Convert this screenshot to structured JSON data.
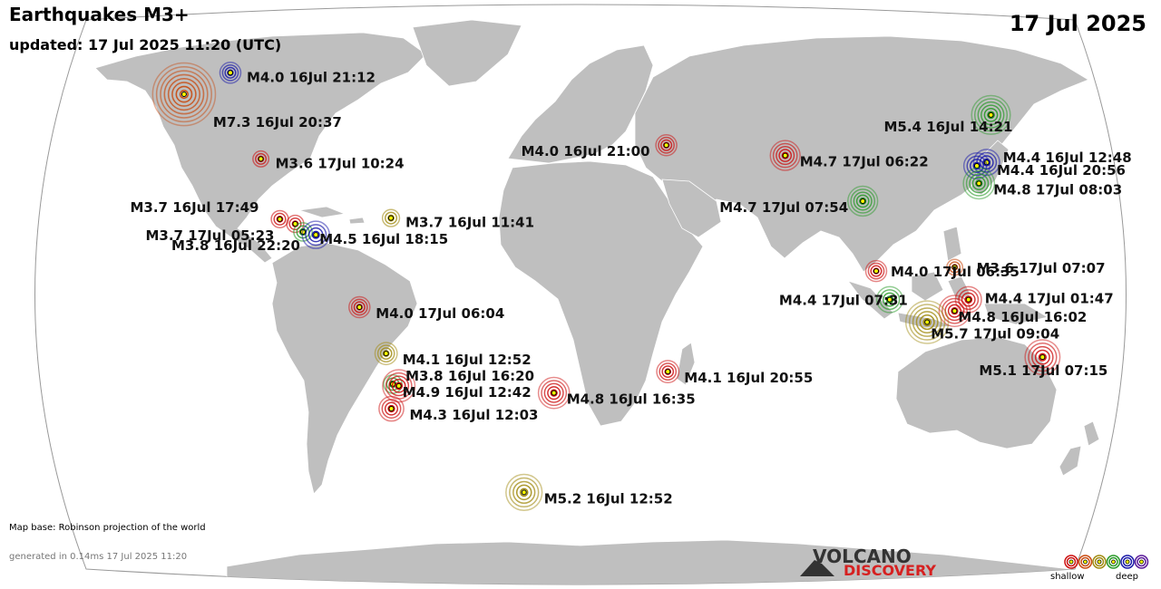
{
  "header": {
    "title": "Earthquakes M3+",
    "updated": "updated: 17 Jul 2025 11:20 (UTC)",
    "date": "17 Jul 2025"
  },
  "footer": {
    "map_base": "Map base: Robinson projection of the world",
    "generated": "generated in 0.14ms 17 Jul 2025 11:20",
    "logo_top": "VOLCANO",
    "logo_bottom": "DISCOVERY",
    "legend_shallow": "shallow",
    "legend_deep": "deep"
  },
  "colors": {
    "ocean": "#ffffff",
    "land": "#bfbfbf",
    "border": "#ffffff",
    "depth": [
      "#cc1010",
      "#c84a10",
      "#a08a10",
      "#2a9a2a",
      "#1a1aa8",
      "#5a1a9a"
    ]
  },
  "quakes": [
    {
      "mag": 4.0,
      "time": "16Jul 21:12",
      "lon": -149.0,
      "lat": 61.5,
      "depth": 4,
      "label": "M4.0 16Jul 21:12"
    },
    {
      "mag": 7.3,
      "time": "16Jul 20:37",
      "lon": -160.5,
      "lat": 54.8,
      "depth": 1,
      "label": "M7.3 16Jul 20:37"
    },
    {
      "mag": 3.6,
      "time": "17Jul 10:24",
      "lon": -118.0,
      "lat": 35.5,
      "depth": 0,
      "label": "M3.6 17Jul 10:24"
    },
    {
      "mag": 3.7,
      "time": "16Jul 17:49",
      "lon": -106.0,
      "lat": 18.5,
      "depth": 0,
      "label": "M3.7 16Jul 17:49"
    },
    {
      "mag": 3.7,
      "time": "17Jul 05:23",
      "lon": -100.5,
      "lat": 17.2,
      "depth": 0,
      "label": "M3.7 17Jul 05:23"
    },
    {
      "mag": 3.8,
      "time": "16Jul 22:20",
      "lon": -97.5,
      "lat": 15.0,
      "depth": 3,
      "label": "M3.8 16Jul 22:20"
    },
    {
      "mag": 4.5,
      "time": "16Jul 18:15",
      "lon": -93.0,
      "lat": 14.2,
      "depth": 4,
      "label": "M4.5 16Jul 18:15"
    },
    {
      "mag": 3.7,
      "time": "16Jul 11:41",
      "lon": -68.0,
      "lat": 18.8,
      "depth": 2,
      "label": "M3.7 16Jul 11:41"
    },
    {
      "mag": 4.0,
      "time": "17Jul 06:04",
      "lon": -77.5,
      "lat": -5.0,
      "depth": 0,
      "label": "M4.0 17Jul 06:04"
    },
    {
      "mag": 4.1,
      "time": "16Jul 12:52",
      "lon": -69.5,
      "lat": -17.5,
      "depth": 2,
      "label": "M4.1 16Jul 12:52"
    },
    {
      "mag": 3.8,
      "time": "16Jul 16:20",
      "lon": -68.5,
      "lat": -26.0,
      "depth": 3,
      "label": "M3.8 16Jul 16:20"
    },
    {
      "mag": 4.9,
      "time": "16Jul 12:42",
      "lon": -66.5,
      "lat": -26.5,
      "depth": 0,
      "label": "M4.9 16Jul 12:42"
    },
    {
      "mag": 4.3,
      "time": "16Jul 12:03",
      "lon": -70.5,
      "lat": -33.0,
      "depth": 0,
      "label": "M4.3 16Jul 12:03"
    },
    {
      "mag": 4.8,
      "time": "16Jul 16:35",
      "lon": -12.5,
      "lat": -28.5,
      "depth": 0,
      "label": "M4.8 16Jul 16:35"
    },
    {
      "mag": 5.2,
      "time": "16Jul 12:52",
      "lon": -26.5,
      "lat": -58.0,
      "depth": 2,
      "label": "M5.2 16Jul 12:52"
    },
    {
      "mag": 4.1,
      "time": "16Jul 20:55",
      "lon": 27.0,
      "lat": -22.5,
      "depth": 0,
      "label": "M4.1 16Jul 20:55"
    },
    {
      "mag": 4.0,
      "time": "16Jul 21:00",
      "lon": 28.0,
      "lat": 39.5,
      "depth": 0,
      "label": "M4.0 16Jul 21:00"
    },
    {
      "mag": 4.7,
      "time": "17Jul 06:22",
      "lon": 70.5,
      "lat": 36.5,
      "depth": 0,
      "label": "M4.7 17Jul 06:22"
    },
    {
      "mag": 4.7,
      "time": "17Jul 07:54",
      "lon": 94.5,
      "lat": 23.5,
      "depth": 3,
      "label": "M4.7 17Jul 07:54"
    },
    {
      "mag": 5.4,
      "time": "16Jul 14:21",
      "lon": 153.0,
      "lat": 48.5,
      "depth": 3,
      "label": "M5.4 16Jul 14:21"
    },
    {
      "mag": 4.4,
      "time": "16Jul 12:48",
      "lon": 142.0,
      "lat": 34.5,
      "depth": 4,
      "label": "M4.4 16Jul 12:48"
    },
    {
      "mag": 4.4,
      "time": "16Jul 20:56",
      "lon": 138.0,
      "lat": 33.5,
      "depth": 4,
      "label": "M4.4 16Jul 20:56"
    },
    {
      "mag": 4.8,
      "time": "17Jul 08:03",
      "lon": 136.5,
      "lat": 28.5,
      "depth": 3,
      "label": "M4.8 17Jul 08:03"
    },
    {
      "mag": 4.0,
      "time": "17Jul 06:35",
      "lon": 96.5,
      "lat": 4.5,
      "depth": 0,
      "label": "M4.0 17Jul 06:35"
    },
    {
      "mag": 3.6,
      "time": "17Jul 07:07",
      "lon": 123.0,
      "lat": 5.5,
      "depth": 1,
      "label": "M3.6 17Jul 07:07"
    },
    {
      "mag": 4.4,
      "time": "17Jul 07:31",
      "lon": 101.0,
      "lat": -3.0,
      "depth": 3,
      "label": "M4.4 17Jul 07:31"
    },
    {
      "mag": 4.4,
      "time": "17Jul 01:47",
      "lon": 127.5,
      "lat": -3.0,
      "depth": 0,
      "label": "M4.4 17Jul 01:47"
    },
    {
      "mag": 4.8,
      "time": "16Jul 16:02",
      "lon": 123.0,
      "lat": -6.0,
      "depth": 0,
      "label": "M4.8 16Jul 16:02"
    },
    {
      "mag": 5.7,
      "time": "17Jul 09:04",
      "lon": 114.0,
      "lat": -9.0,
      "depth": 2,
      "label": "M5.7 17Jul 09:04"
    },
    {
      "mag": 5.1,
      "time": "17Jul 07:15",
      "lon": 155.0,
      "lat": -18.5,
      "depth": 0,
      "label": "M5.1 17Jul 07:15"
    }
  ]
}
